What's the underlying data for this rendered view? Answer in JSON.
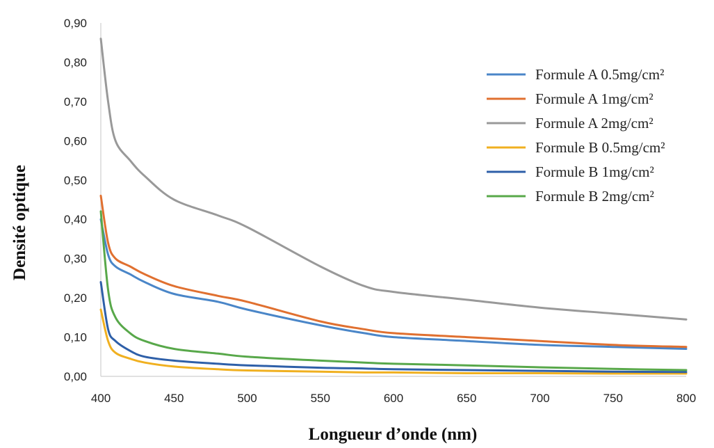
{
  "chart_data": {
    "type": "line",
    "title": "",
    "xlabel": "Longueur d’onde (nm)",
    "ylabel": "Densité optique",
    "xlim": [
      400,
      800
    ],
    "ylim": [
      0,
      0.9
    ],
    "x_ticks": [
      "400",
      "450",
      "500",
      "550",
      "600",
      "650",
      "700",
      "750",
      "800"
    ],
    "y_ticks": [
      "0,00",
      "0,10",
      "0,20",
      "0,30",
      "0,40",
      "0,50",
      "0,60",
      "0,70",
      "0,80",
      "0,90"
    ],
    "grid": false,
    "legend_position": "right",
    "x": [
      400,
      405,
      410,
      420,
      430,
      450,
      480,
      500,
      550,
      580,
      600,
      650,
      700,
      750,
      800
    ],
    "series": [
      {
        "name": "Formule A 0.5mg/cm²",
        "color": "#4a86c8",
        "values": [
          0.4,
          0.31,
          0.28,
          0.26,
          0.24,
          0.21,
          0.19,
          0.17,
          0.13,
          0.11,
          0.1,
          0.09,
          0.08,
          0.075,
          0.07
        ]
      },
      {
        "name": "Formule A 1mg/cm²",
        "color": "#e07030",
        "values": [
          0.46,
          0.34,
          0.3,
          0.28,
          0.26,
          0.23,
          0.205,
          0.19,
          0.14,
          0.12,
          0.11,
          0.1,
          0.09,
          0.08,
          0.075
        ]
      },
      {
        "name": "Formule A 2mg/cm²",
        "color": "#999999",
        "values": [
          0.86,
          0.7,
          0.6,
          0.55,
          0.51,
          0.45,
          0.41,
          0.38,
          0.28,
          0.23,
          0.215,
          0.195,
          0.175,
          0.16,
          0.145
        ]
      },
      {
        "name": "Formule B 0.5mg/cm²",
        "color": "#f0b020",
        "values": [
          0.17,
          0.09,
          0.06,
          0.045,
          0.035,
          0.025,
          0.018,
          0.015,
          0.012,
          0.01,
          0.01,
          0.008,
          0.008,
          0.007,
          0.007
        ]
      },
      {
        "name": "Formule B 1mg/cm²",
        "color": "#2e5fa8",
        "values": [
          0.24,
          0.12,
          0.09,
          0.065,
          0.05,
          0.04,
          0.032,
          0.028,
          0.022,
          0.02,
          0.018,
          0.016,
          0.014,
          0.012,
          0.011
        ]
      },
      {
        "name": "Formule B 2mg/cm²",
        "color": "#58a84a",
        "values": [
          0.42,
          0.22,
          0.15,
          0.11,
          0.09,
          0.07,
          0.058,
          0.05,
          0.04,
          0.035,
          0.032,
          0.028,
          0.023,
          0.019,
          0.016
        ]
      }
    ]
  }
}
